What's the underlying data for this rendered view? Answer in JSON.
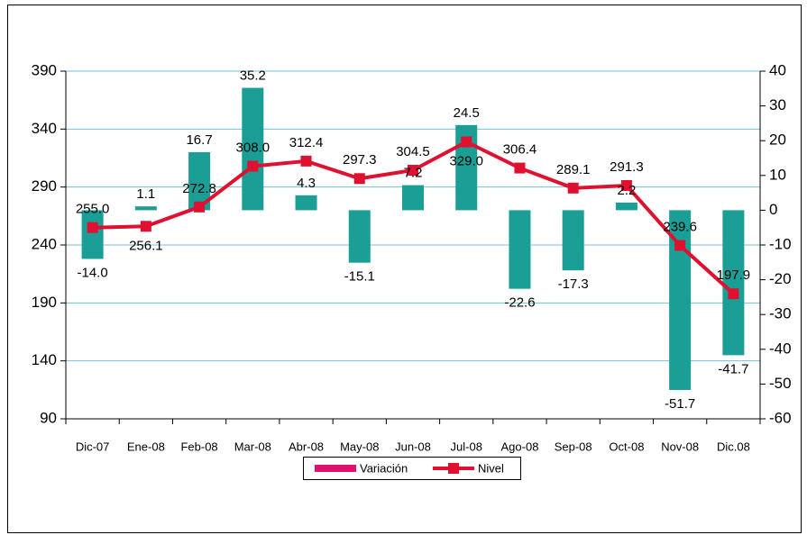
{
  "chart_data": {
    "type": "combo",
    "categories": [
      "Dic-07",
      "Ene-08",
      "Feb-08",
      "Mar-08",
      "Abr-08",
      "May-08",
      "Jun-08",
      "Jul-08",
      "Ago-08",
      "Sep-08",
      "Oct-08",
      "Nov-08",
      "Dic.08"
    ],
    "series": [
      {
        "name": "Variación",
        "type": "bar",
        "axis": "y2",
        "color": "#1b9e95",
        "legend_color": "#e0106e",
        "values": [
          -14.0,
          1.1,
          16.7,
          35.2,
          4.3,
          -15.1,
          7.2,
          24.5,
          -22.6,
          -17.3,
          2.2,
          -51.7,
          -41.7
        ],
        "value_labels": [
          "-14.0",
          "1.1",
          "16.7",
          "35.2",
          "4.3",
          "-15.1",
          "7.2",
          "24.5",
          "-22.6",
          "-17.3",
          "2.2",
          "-51.7",
          "-41.7"
        ]
      },
      {
        "name": "Nivel",
        "type": "line",
        "axis": "y",
        "color": "#e01030",
        "values": [
          255.0,
          256.1,
          272.8,
          308.0,
          312.4,
          297.3,
          304.5,
          329.0,
          306.4,
          289.1,
          291.3,
          239.6,
          197.9
        ],
        "value_labels": [
          "255.0",
          "256.1",
          "272.8",
          "308.0",
          "312.4",
          "297.3",
          "304.5",
          "329.0",
          "306.4",
          "289.1",
          "291.3",
          "239.6",
          "197.9"
        ]
      }
    ],
    "ylim": [
      90,
      390
    ],
    "yticks": [
      90,
      140,
      190,
      240,
      290,
      340,
      390
    ],
    "y2lim": [
      -60,
      40
    ],
    "y2ticks": [
      -60,
      -50,
      -40,
      -30,
      -20,
      -10,
      0,
      10,
      20,
      30,
      40
    ],
    "grid": true
  }
}
